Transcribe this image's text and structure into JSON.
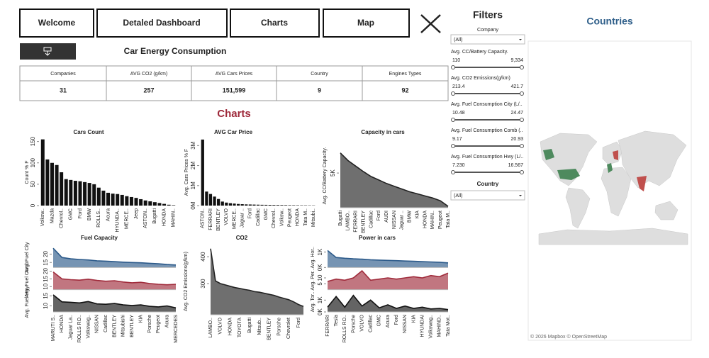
{
  "nav": [
    "Welcome",
    "Detaled Dashboard",
    "Charts",
    "Map"
  ],
  "header": {
    "title": "Car Energy Consumption",
    "section": "Charts"
  },
  "kpi": {
    "headers": [
      "Companies",
      "AVG CO2 (g/km)",
      "AVG Cars Prices",
      "Country",
      "Engines Types"
    ],
    "values": [
      "31",
      "257",
      "151,599",
      "9",
      "92"
    ]
  },
  "filters": {
    "title": "Filters",
    "company": {
      "label": "Company",
      "value": "(All)"
    },
    "ranges": [
      {
        "label": "Avg. CC/Battery Capacity.",
        "min": "110",
        "max": "9,334"
      },
      {
        "label": "Avg. CO2 Emissions(g/km)",
        "min": "213.4",
        "max": "421.7"
      },
      {
        "label": "Avg. Fuel Consumption City (L/..",
        "min": "10.48",
        "max": "24.47"
      },
      {
        "label": "Avg. Fuel Consumption Comb (..",
        "min": "9.17",
        "max": "20.93"
      },
      {
        "label": "Avg. Fuel Consumption Hwy (L/..",
        "min": "7.230",
        "max": "16.567"
      }
    ],
    "country": {
      "label": "Country",
      "value": "(All)"
    }
  },
  "map": {
    "title": "Countries",
    "credit": "© 2026 Mapbox © OpenStreetMap"
  },
  "chart_data": [
    {
      "type": "bar",
      "title": "Cars Count",
      "ylabel": "Count % F",
      "color": "#111111",
      "categories": [
        "Volksw..",
        null,
        "Mazda",
        null,
        "Chevrol..",
        null,
        "GMC",
        null,
        "Ford",
        null,
        "BMW",
        null,
        "ROLLS..",
        null,
        "Acura",
        null,
        "HYUNDA..",
        null,
        "MERCE..",
        null,
        "Jeep",
        null,
        "ASTON..",
        null,
        "Bugatti",
        null,
        "HONDA",
        null,
        "MAHIN.."
      ],
      "values": [
        155,
        108,
        100,
        95,
        78,
        62,
        60,
        58,
        57,
        55,
        53,
        50,
        42,
        35,
        30,
        28,
        27,
        25,
        22,
        20,
        18,
        15,
        12,
        10,
        8,
        6,
        4,
        2,
        1
      ],
      "ylim": [
        0,
        156
      ],
      "yticks": [
        0,
        50,
        100,
        150
      ]
    },
    {
      "type": "bar",
      "title": "AVG Car Price",
      "ylabel": "Avg. Cars Prices % F",
      "color": "#111111",
      "categories": [
        "ASTON..",
        null,
        "FERRARI",
        null,
        "BENTLEY",
        null,
        "VOLVO",
        null,
        "MERCE..",
        null,
        "Jaguar ..",
        null,
        "Ford",
        null,
        "Cadillac",
        null,
        "GMC",
        null,
        "Chevrol..",
        null,
        "Volksw..",
        null,
        "Peugeot",
        null,
        "HONDA",
        null,
        "Tata M..",
        null,
        "Mitsubi.."
      ],
      "values": [
        3300000,
        700000,
        580000,
        450000,
        330000,
        200000,
        150000,
        120000,
        100000,
        80000,
        70000,
        60000,
        55000,
        50000,
        45000,
        40000,
        38000,
        35000,
        32000,
        30000,
        28000,
        25000,
        22000,
        20000,
        18000,
        16000,
        15000,
        13000,
        12000
      ],
      "ylim": [
        0,
        3330000
      ],
      "yticks": [
        {
          "value": 0,
          "label": "0M"
        },
        {
          "value": 1000000,
          "label": "1M"
        },
        {
          "value": 2000000,
          "label": "2M"
        },
        {
          "value": 3000000,
          "label": "3M"
        }
      ]
    },
    {
      "type": "area",
      "title": "Capacity in cars",
      "ylabel": "Avg. CC/Battery Capacity.",
      "color": "#222222",
      "categories": [
        "Bugatti",
        "LAMBO..",
        "FERRARI",
        "BENTLEY",
        "Cadillac",
        "Ford",
        "AUDI",
        "NISSAN",
        "Jaguar ..",
        "BMW",
        "KIA",
        "HONDA",
        "MAHIN..",
        "Peugeot",
        "Tata M.."
      ],
      "values": [
        7900,
        6800,
        6000,
        5200,
        4500,
        4000,
        3500,
        3100,
        2700,
        2300,
        2000,
        1700,
        1400,
        1000,
        200
      ],
      "ylim": [
        0,
        9200
      ],
      "yticks": [
        {
          "value": 5000,
          "label": "5K"
        }
      ]
    },
    {
      "type": "panels",
      "title": "Fuel Capacity",
      "categories": [
        "MARUTI S..",
        "HONDA",
        "Jaguar La..",
        "ROLLS RO..",
        "Volkswag..",
        "NISSAN",
        "Cadillac",
        "BENTLEY",
        "Mitsubishi",
        "BENTLEY",
        "KIA",
        "Porsche",
        "Peugeot",
        "Acura",
        "MERCEDES"
      ],
      "series": [
        {
          "name": "Avg. Fuel City",
          "color": "#2c5a8a",
          "values": [
            23.5,
            18,
            17.2,
            16.8,
            16.5,
            16,
            15.8,
            15.5,
            15.2,
            15,
            14.8,
            14.5,
            14.2,
            13.8,
            13.5
          ],
          "ylim": [
            12,
            24
          ],
          "yticks": [
            15,
            20
          ]
        },
        {
          "name": "Avg. Fuel Comb",
          "color": "#a02c3c",
          "values": [
            19.5,
            15,
            14.5,
            14.2,
            14.8,
            14,
            13.5,
            13.8,
            13,
            12.5,
            12.8,
            12,
            11.5,
            11.2,
            11.5
          ],
          "ylim": [
            8,
            21
          ],
          "yticks": [
            10,
            15,
            20
          ]
        },
        {
          "name": "Avg. Fuel Hwy",
          "color": "#111111",
          "values": [
            15.5,
            12,
            11.8,
            11.5,
            12.2,
            11,
            10.8,
            11.2,
            10.5,
            10.2,
            10.5,
            9.8,
            9.5,
            10,
            9
          ],
          "ylim": [
            7,
            17
          ],
          "yticks": [
            10,
            15
          ]
        }
      ]
    },
    {
      "type": "area",
      "title": "CO2",
      "ylabel": "Avg. CO2 Emissions(g/km)",
      "color": "#222222",
      "categories": [
        "LAMBO..",
        null,
        "VOLVO",
        null,
        "HONDA",
        null,
        "TOYOTA",
        null,
        "Bugatti",
        null,
        "Mitsub..",
        null,
        "BENTLEY",
        null,
        "Porsche",
        null,
        "Chevrolet",
        null,
        "Ford",
        null
      ],
      "values": [
        430,
        310,
        300,
        295,
        290,
        285,
        282,
        278,
        275,
        270,
        268,
        264,
        260,
        256,
        250,
        245,
        240,
        232,
        222,
        215
      ],
      "ylim": [
        184,
        432
      ],
      "yticks": [
        300,
        400
      ]
    },
    {
      "type": "panels",
      "title": "Power in cars",
      "categories": [
        "FERRARI",
        "Tesla",
        "ROLLS RO..",
        "Porsche",
        "VOLVO",
        "Cadillac",
        "GMC",
        "Acura",
        "Ford",
        "NISSAN",
        "KIA",
        "HYUNDAI",
        "Volkswag..",
        "MAHIND..",
        "Tata Mot.."
      ],
      "series": [
        {
          "name": "Avg. Hor..",
          "color": "#2c5a8a",
          "values": [
            1100,
            650,
            600,
            560,
            540,
            500,
            480,
            460,
            440,
            420,
            400,
            380,
            360,
            340,
            300
          ],
          "ylim": [
            0,
            1300
          ],
          "yticks": [
            {
              "value": 0,
              "label": "0K"
            },
            {
              "value": 1000,
              "label": "1K"
            }
          ]
        },
        {
          "name": "Avg. Per..",
          "color": "#a02c3c",
          "values": [
            7,
            9,
            8,
            10,
            16,
            8,
            9,
            10,
            9,
            10,
            11,
            10,
            12,
            11,
            14
          ],
          "ylim": [
            0,
            17
          ],
          "yticks": [
            5,
            10
          ]
        },
        {
          "name": "Avg. Tor..",
          "color": "#111111",
          "values": [
            400,
            1300,
            400,
            1400,
            500,
            1000,
            350,
            600,
            300,
            500,
            300,
            400,
            250,
            300,
            200
          ],
          "ylim": [
            0,
            1700
          ],
          "yticks": [
            {
              "value": 0,
              "label": "0K"
            },
            {
              "value": 1000,
              "label": "1K"
            }
          ]
        }
      ]
    }
  ]
}
